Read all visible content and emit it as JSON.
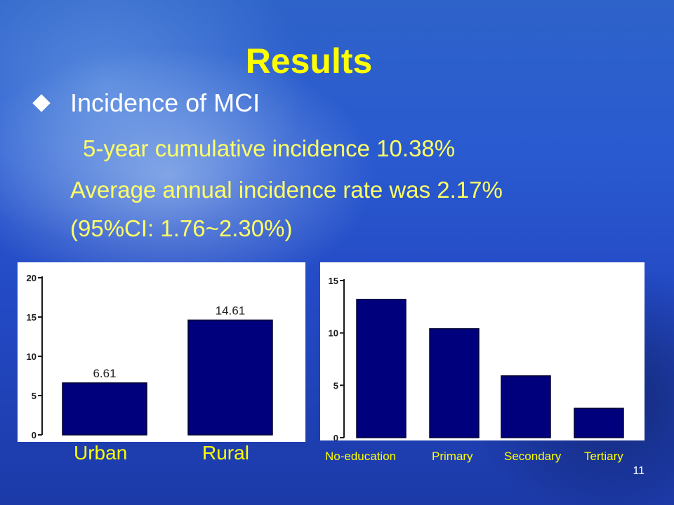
{
  "slide": {
    "title": "Results",
    "bullet": "Incidence of MCI",
    "lines": [
      "5-year cumulative incidence 10.38%",
      "Average annual incidence rate was 2.17%",
      "(95%CI: 1.76~2.30%)"
    ],
    "page_number": "11"
  },
  "colors": {
    "bar": "#00007c",
    "title": "#ffff00",
    "text": "#ffff66",
    "axis": "#1a1a1a"
  },
  "chart_data": [
    {
      "type": "bar",
      "categories": [
        "Urban",
        "Rural"
      ],
      "values": [
        6.61,
        14.61
      ],
      "data_labels": [
        "6.61",
        "14.61"
      ],
      "ylim": [
        0,
        20
      ],
      "yticks": [
        0,
        5,
        10,
        15,
        20
      ],
      "title": "",
      "xlabel": "",
      "ylabel": ""
    },
    {
      "type": "bar",
      "categories": [
        "No-education",
        "Primary",
        "Secondary",
        "Tertiary"
      ],
      "values": [
        13.2,
        10.4,
        5.9,
        2.8
      ],
      "ylim": [
        0,
        15
      ],
      "yticks": [
        0,
        5,
        10,
        15
      ],
      "title": "",
      "xlabel": "",
      "ylabel": ""
    }
  ]
}
